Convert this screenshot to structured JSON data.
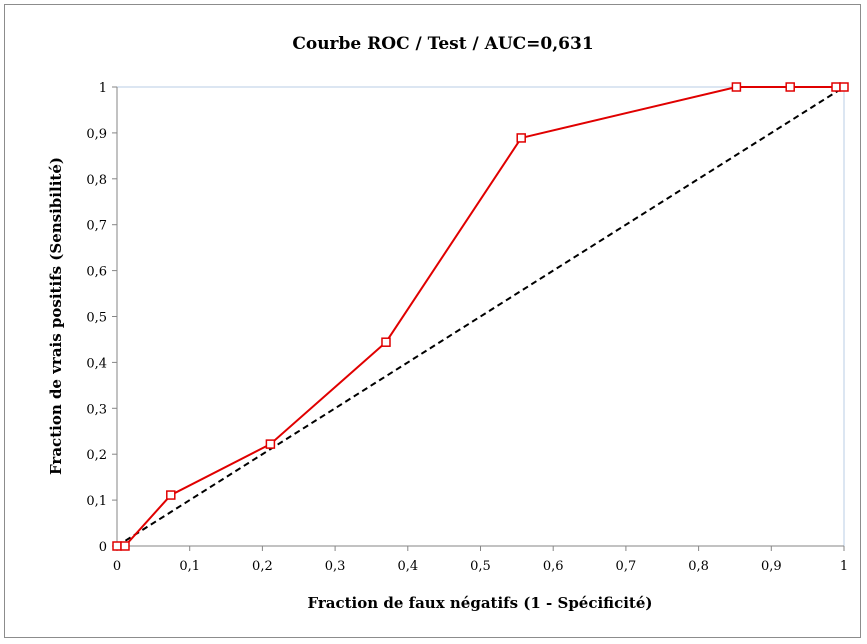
{
  "chart_data": {
    "type": "line",
    "title": "Courbe ROC / Test / AUC=0,631",
    "xlabel": "Fraction de faux négatifs (1 - Spécificité)",
    "ylabel": "Fraction de vrais positifs (Sensibilité)",
    "xlim": [
      0,
      1
    ],
    "ylim": [
      0,
      1
    ],
    "xticks": [
      "0",
      "0,1",
      "0,2",
      "0,3",
      "0,4",
      "0,5",
      "0,6",
      "0,7",
      "0,8",
      "0,9",
      "1"
    ],
    "yticks": [
      "0",
      "0,1",
      "0,2",
      "0,3",
      "0,4",
      "0,5",
      "0,6",
      "0,7",
      "0,8",
      "0,9",
      "1"
    ],
    "grid": false,
    "legend": "none",
    "series": [
      {
        "color": "#e00000",
        "marker": "square",
        "x": [
          0,
          0.011,
          0.074,
          0.211,
          0.37,
          0.556,
          0.852,
          0.926,
          0.989,
          1.0
        ],
        "y": [
          0,
          0,
          0.111,
          0.222,
          0.444,
          0.889,
          1.0,
          1.0,
          1.0,
          1.0
        ]
      },
      {
        "color": "#000000",
        "style": "dashed",
        "x": [
          0,
          1
        ],
        "y": [
          0,
          1
        ]
      }
    ]
  }
}
